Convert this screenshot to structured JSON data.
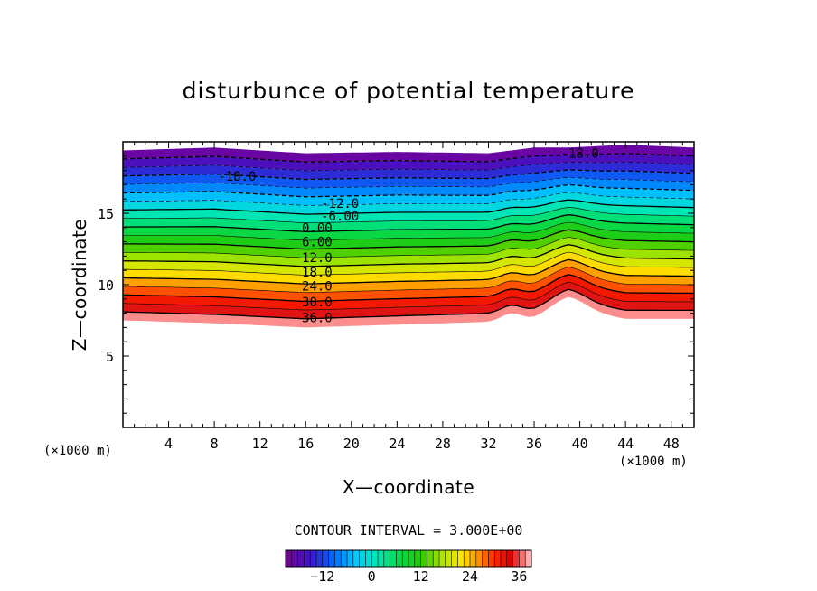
{
  "chart_data": {
    "type": "heatmap",
    "title": "disturbunce of potential temperature",
    "xlabel": "X—coordinate",
    "ylabel": "Z—coordinate",
    "x_unit": "(×1000 m)",
    "y_unit": "(×1000 m)",
    "xlim": [
      0,
      50
    ],
    "ylim": [
      0,
      20
    ],
    "x_ticks": [
      4,
      8,
      12,
      16,
      20,
      24,
      28,
      32,
      36,
      40,
      44,
      48
    ],
    "y_ticks": [
      5,
      10,
      15
    ],
    "contour_interval_label": "CONTOUR INTERVAL = 3.000E+00",
    "contour_interval": 3,
    "value_range": [
      -21,
      39
    ],
    "colorbar_ticks": [
      -12,
      0,
      12,
      24,
      36
    ],
    "contour_labels": [
      {
        "text": "-18.0",
        "x": 10,
        "z": 17.6
      },
      {
        "text": "-18.0",
        "x": 40,
        "z": 19.2
      },
      {
        "text": "-12.0",
        "x": 19,
        "z": 15.7
      },
      {
        "text": "-6.00",
        "x": 19,
        "z": 14.8
      },
      {
        "text": "0.00",
        "x": 17,
        "z": 14.0
      },
      {
        "text": "6.00",
        "x": 17,
        "z": 13.0
      },
      {
        "text": "12.0",
        "x": 17,
        "z": 11.9
      },
      {
        "text": "18.0",
        "x": 17,
        "z": 10.9
      },
      {
        "text": "24.0",
        "x": 17,
        "z": 9.9
      },
      {
        "text": "30.0",
        "x": 17,
        "z": 8.8
      },
      {
        "text": "36.0",
        "x": 17,
        "z": 7.7
      }
    ],
    "field_profiles": [
      {
        "x": 0,
        "bottom_z": 7.5,
        "top_z": 19.4
      },
      {
        "x": 8,
        "bottom_z": 7.3,
        "top_z": 19.6
      },
      {
        "x": 16,
        "bottom_z": 7.0,
        "top_z": 19.2
      },
      {
        "x": 24,
        "bottom_z": 7.2,
        "top_z": 19.3
      },
      {
        "x": 32,
        "bottom_z": 7.4,
        "top_z": 19.2
      },
      {
        "x": 36,
        "bottom_z": 7.6,
        "top_z": 19.6
      },
      {
        "x": 39,
        "bottom_z": 8.3,
        "top_z": 19.6
      },
      {
        "x": 44,
        "bottom_z": 7.6,
        "top_z": 19.8
      },
      {
        "x": 50,
        "bottom_z": 7.6,
        "top_z": 19.6
      }
    ]
  }
}
